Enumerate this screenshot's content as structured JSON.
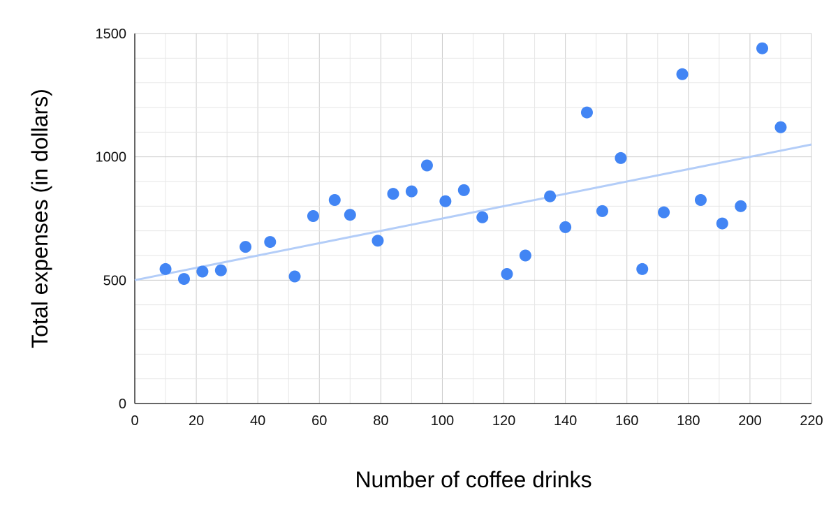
{
  "chart_data": {
    "type": "scatter",
    "title": "",
    "xlabel": "Number of coffee drinks",
    "ylabel": "Total expenses (in dollars)",
    "xlim": [
      0,
      220
    ],
    "ylim": [
      0,
      1500
    ],
    "x_ticks": [
      "0",
      "20",
      "40",
      "60",
      "80",
      "100",
      "120",
      "140",
      "160",
      "180",
      "200",
      "220"
    ],
    "y_ticks": [
      "0",
      "500",
      "1000",
      "1500"
    ],
    "grid": true,
    "legend": "none",
    "colors": {
      "points": "#4285f4",
      "trendline": "#b3cdf8",
      "major_grid": "#cccccc",
      "minor_grid": "#e6e6e6",
      "axis": "#333333"
    },
    "series": [
      {
        "x": [
          10,
          16,
          22,
          28,
          36,
          44,
          52,
          58,
          65,
          70,
          79,
          84,
          90,
          95,
          101,
          107,
          113,
          121,
          127,
          135,
          140,
          147,
          152,
          158,
          165,
          172,
          178,
          184,
          191,
          197,
          204,
          210
        ],
        "y": [
          545,
          505,
          535,
          540,
          635,
          655,
          515,
          760,
          825,
          765,
          660,
          850,
          860,
          965,
          820,
          865,
          755,
          525,
          600,
          840,
          715,
          1180,
          780,
          995,
          545,
          775,
          1335,
          825,
          730,
          800,
          1440,
          1120
        ]
      }
    ],
    "trendline": {
      "type": "linear",
      "x": [
        0,
        220
      ],
      "y": [
        500,
        1050
      ]
    }
  }
}
